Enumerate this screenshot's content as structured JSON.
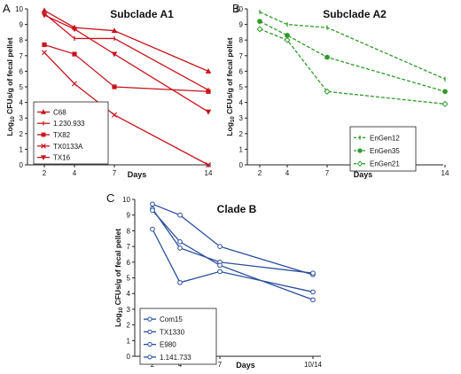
{
  "chart_data": [
    {
      "id": "A",
      "panel_label": "A",
      "type": "line",
      "title": "Subclade A1",
      "xlabel": "Days",
      "ylabel_main": "Log",
      "ylabel_sub": "10",
      "ylabel_rest": " CFUs/g of fecal pellet",
      "x_ticks": [
        "2",
        "4",
        "7",
        "14"
      ],
      "y_ticks": [
        "0",
        "1",
        "2",
        "3",
        "4",
        "5",
        "6",
        "7",
        "8",
        "9",
        "10"
      ],
      "ylim": [
        0,
        10
      ],
      "grid": false,
      "legend_position": "bottom-left",
      "color": "#c8141e",
      "series": [
        {
          "name": "C68",
          "marker": "triangle",
          "dash": "solid",
          "values": [
            9.9,
            8.8,
            8.6,
            6.0
          ]
        },
        {
          "name": "1.230.933",
          "marker": "tick",
          "dash": "solid",
          "values": [
            9.7,
            8.1,
            8.1,
            4.8
          ]
        },
        {
          "name": "TX82",
          "marker": "square",
          "dash": "solid",
          "values": [
            7.7,
            7.1,
            5.0,
            4.7
          ]
        },
        {
          "name": "TX0133A",
          "marker": "x",
          "dash": "solid",
          "values": [
            7.2,
            5.2,
            3.2,
            0.0
          ]
        },
        {
          "name": "TX16",
          "marker": "triangle-down",
          "dash": "solid",
          "values": [
            9.6,
            8.7,
            7.1,
            3.4
          ]
        }
      ]
    },
    {
      "id": "B",
      "panel_label": "B",
      "type": "line",
      "title": "Subclade A2",
      "xlabel": "Days",
      "ylabel_main": "Log",
      "ylabel_sub": "10",
      "ylabel_rest": " CFUs/g of fecal pellet",
      "x_ticks": [
        "2",
        "4",
        "7",
        "14"
      ],
      "y_ticks": [
        "0",
        "1",
        "2",
        "3",
        "4",
        "5",
        "6",
        "7",
        "8",
        "9",
        "10"
      ],
      "ylim": [
        0,
        10
      ],
      "grid": false,
      "legend_position": "bottom-right",
      "color": "#2e9a2a",
      "series": [
        {
          "name": "EnGen12",
          "marker": "tick",
          "dash": "dashed",
          "values": [
            9.8,
            9.0,
            8.8,
            5.5
          ]
        },
        {
          "name": "EnGen35",
          "marker": "circle-filled",
          "dash": "dashed",
          "values": [
            9.2,
            8.3,
            6.9,
            4.7
          ]
        },
        {
          "name": "EnGen21",
          "marker": "diamond-open",
          "dash": "dashed",
          "values": [
            8.7,
            8.0,
            4.7,
            3.9
          ]
        }
      ]
    },
    {
      "id": "C",
      "panel_label": "C",
      "type": "line",
      "title": "Clade B",
      "xlabel": "Days",
      "ylabel_main": "Log",
      "ylabel_sub": "10",
      "ylabel_rest": " CFUs/g of fecal pellet",
      "x_ticks": [
        "2",
        "4",
        "7",
        "10/14"
      ],
      "y_ticks": [
        "0",
        "1",
        "2",
        "3",
        "4",
        "5",
        "6",
        "7",
        "8",
        "9",
        "10"
      ],
      "ylim": [
        0,
        10
      ],
      "grid": false,
      "legend_position": "bottom-left",
      "color": "#2b4f9c",
      "series": [
        {
          "name": "Com15",
          "marker": "circle-open",
          "dash": "solid",
          "values": [
            9.7,
            9.0,
            7.0,
            5.2
          ]
        },
        {
          "name": "TX1330",
          "marker": "circle-open",
          "dash": "solid",
          "values": [
            9.4,
            6.9,
            6.0,
            5.3
          ]
        },
        {
          "name": "E980",
          "marker": "circle-open",
          "dash": "solid",
          "values": [
            8.1,
            4.7,
            5.4,
            4.1
          ]
        },
        {
          "name": "1.141.733",
          "marker": "circle-open",
          "dash": "solid",
          "values": [
            9.3,
            7.3,
            5.8,
            3.6
          ]
        }
      ]
    }
  ]
}
